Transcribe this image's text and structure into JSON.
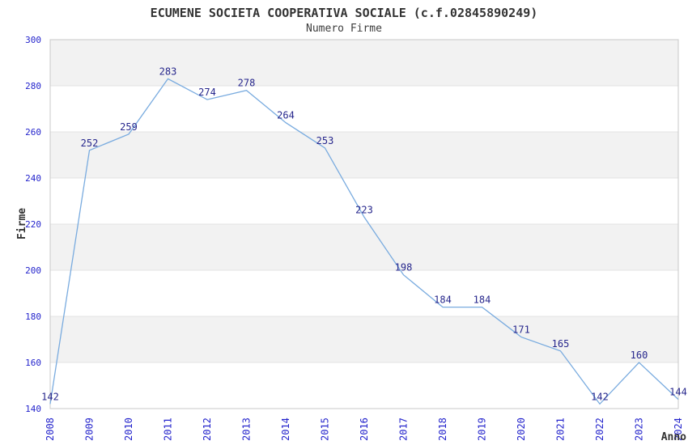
{
  "chart": {
    "title": "ECUMENE SOCIETA COOPERATIVA SOCIALE (c.f.02845890249)",
    "subtitle": "Numero Firme"
  },
  "chart_data": {
    "type": "line",
    "title": "ECUMENE SOCIETA COOPERATIVA SOCIALE (c.f.02845890249)",
    "subtitle": "Numero Firme",
    "xlabel": "Anno",
    "ylabel": "Firme",
    "x": [
      2008,
      2009,
      2010,
      2011,
      2012,
      2013,
      2014,
      2015,
      2016,
      2017,
      2018,
      2019,
      2020,
      2021,
      2022,
      2023,
      2024
    ],
    "x_tick_labels": [
      "2008",
      "2009",
      "2010",
      "2011",
      "2012",
      "2013",
      "2014",
      "2015",
      "2016",
      "2017",
      "2018",
      "2019",
      "2020",
      "2021",
      "2022",
      "2023",
      "2024"
    ],
    "values": [
      142,
      252,
      259,
      283,
      274,
      278,
      264,
      253,
      223,
      198,
      184,
      184,
      171,
      165,
      142,
      160,
      144
    ],
    "data_labels": [
      "142",
      "252",
      "259",
      "283",
      "274",
      "278",
      "264",
      "253",
      "223",
      "198",
      "184",
      "184",
      "171",
      "165",
      "142",
      "160",
      "144"
    ],
    "ylim": [
      140,
      300
    ],
    "ytick_step": 20,
    "y_tick_labels": [
      "140",
      "160",
      "180",
      "200",
      "220",
      "240",
      "260",
      "280",
      "300"
    ],
    "grid": "alternating-horizontal-bands",
    "legend": "none",
    "x_tick_rotation_deg": -90,
    "colors": {
      "line": "#79abdf",
      "data_label": "#26268c",
      "tick_label": "#2424cc",
      "band_fill": "#f2f2f2",
      "grid_line": "#e3e3e3",
      "plot_border": "#c8c8c8",
      "title_text": "#333333",
      "axis_title_text": "#333333",
      "background": "#ffffff"
    }
  }
}
